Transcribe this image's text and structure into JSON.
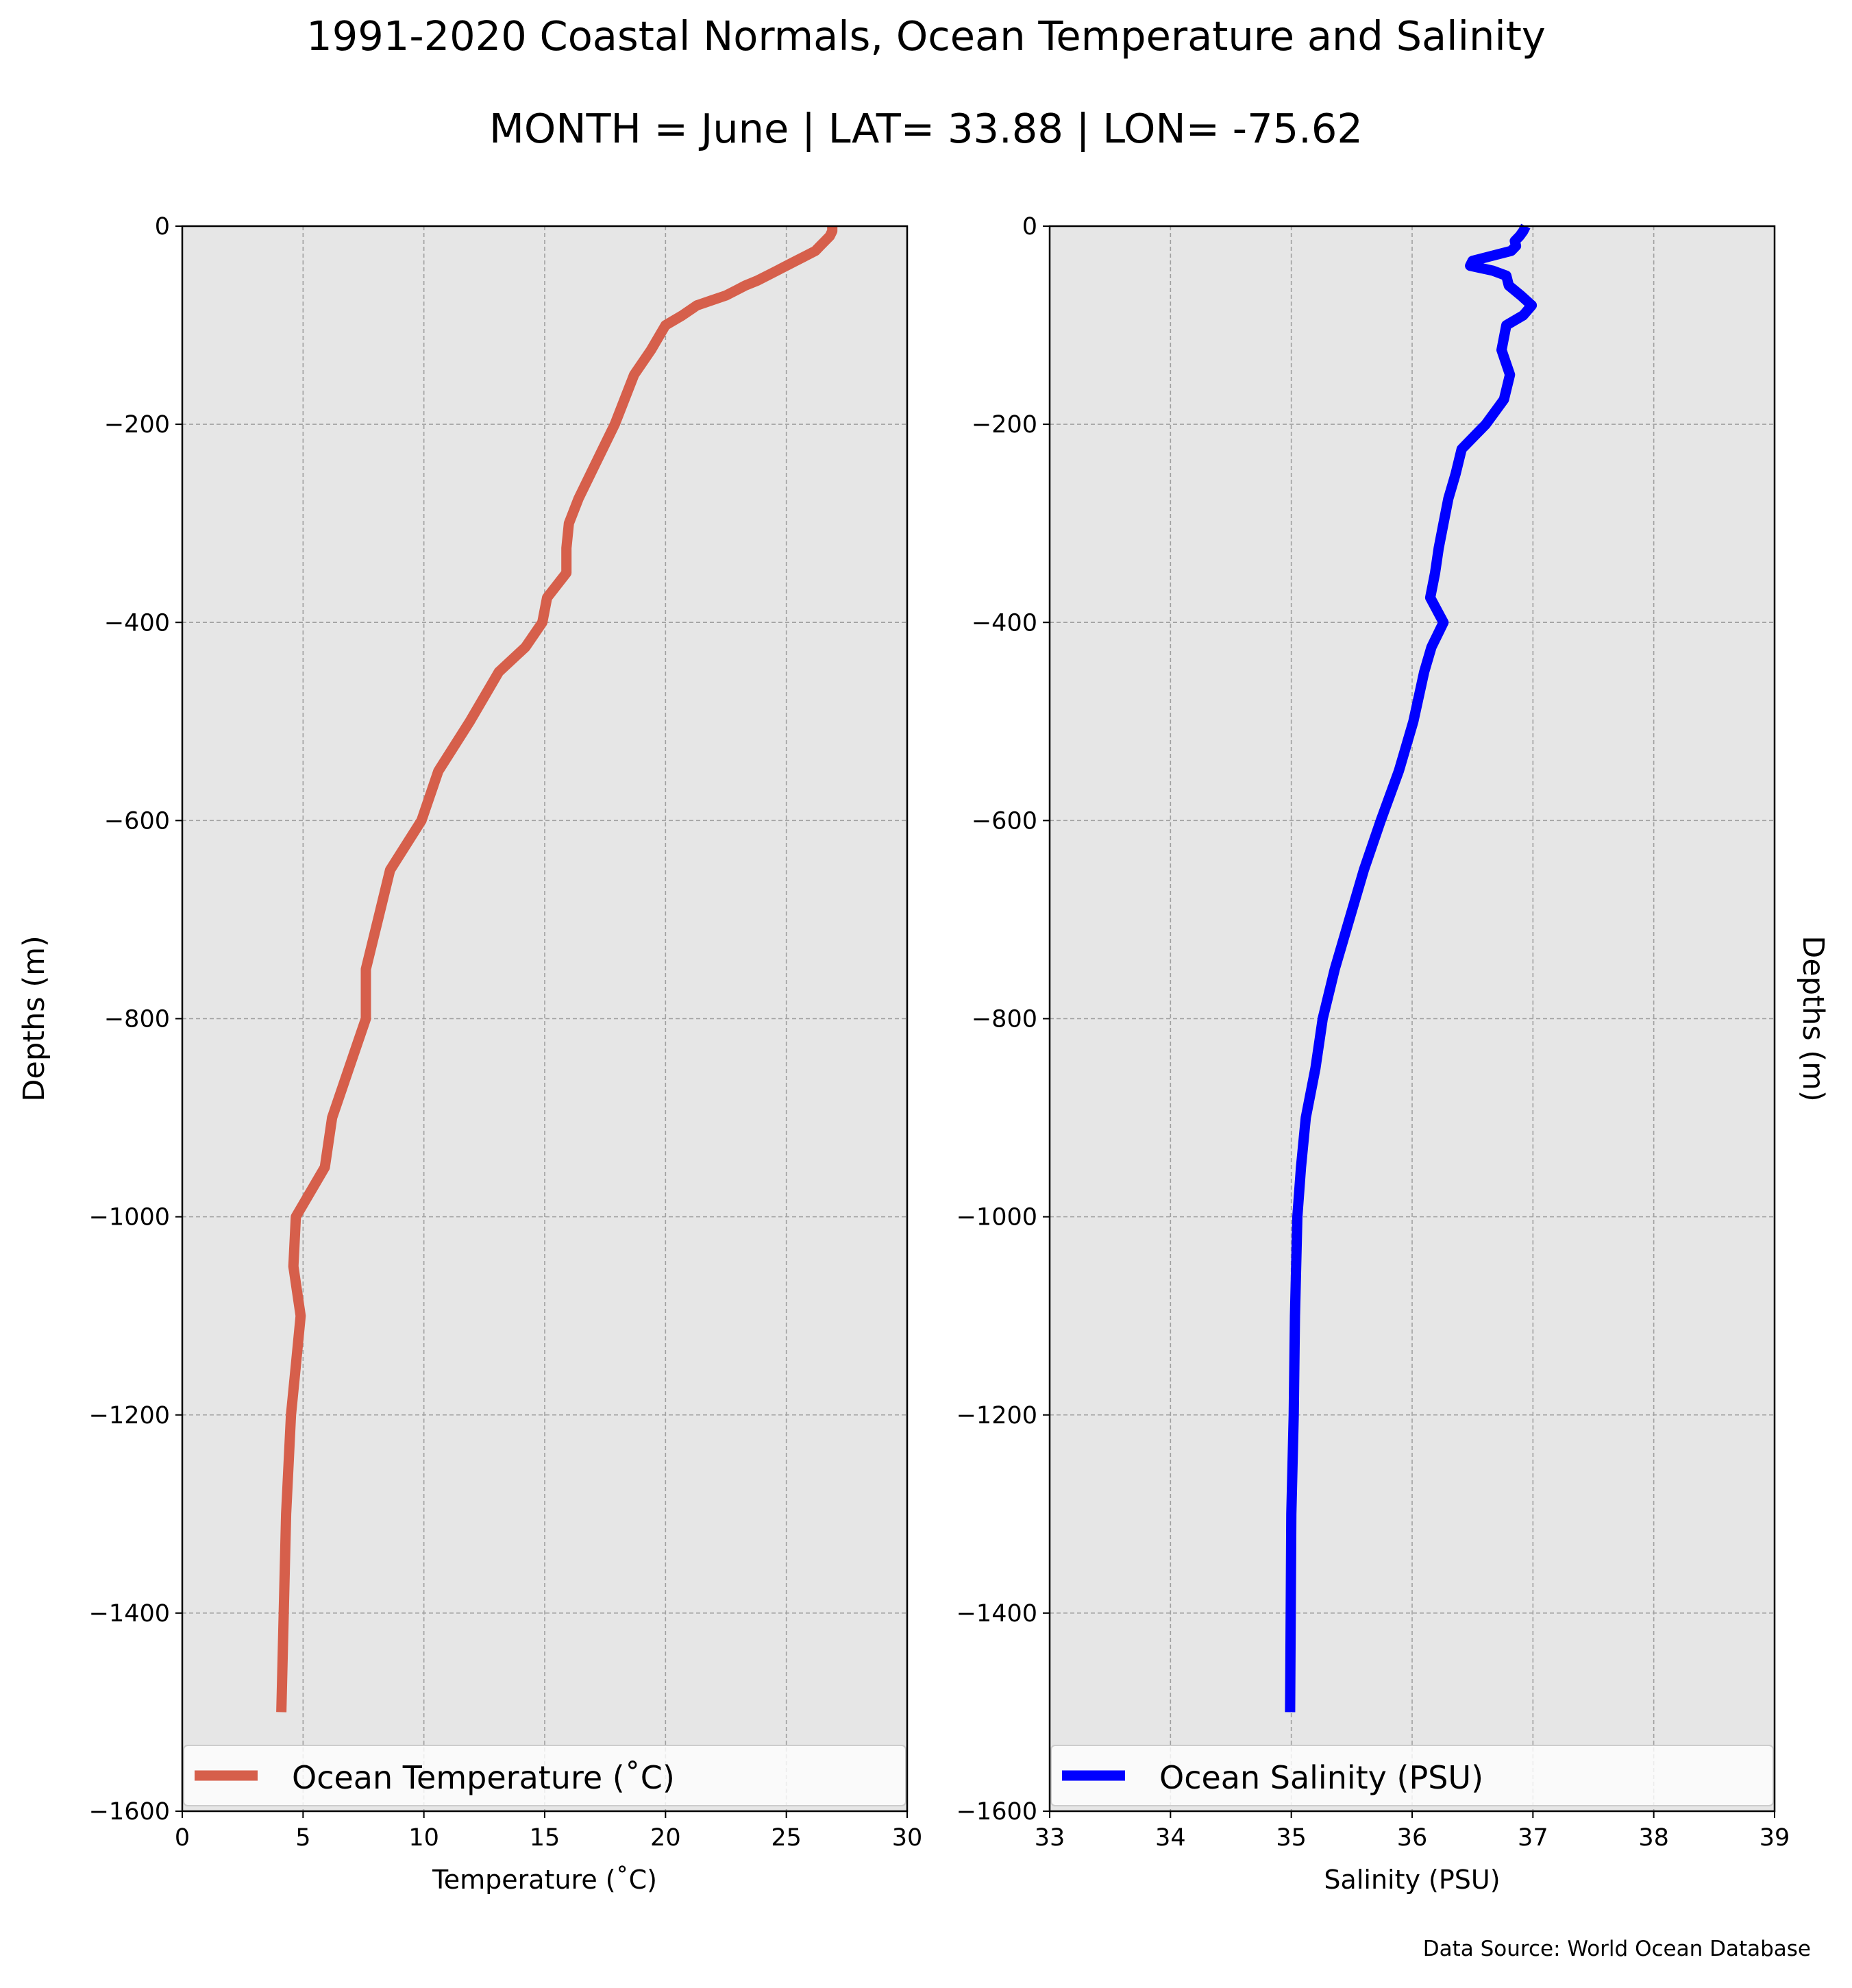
{
  "figure": {
    "title": "1991-2020 Coastal Normals, Ocean Temperature and Salinity",
    "subtitle": "MONTH = June | LAT= 33.88 | LON= -75.62",
    "source": "Data Source: World Ocean Database"
  },
  "colors": {
    "temperature": "#d65f4b",
    "salinity": "#0000ff",
    "plot_background": "#e6e6e6",
    "grid": "#a0a0a0"
  },
  "chart_data": [
    {
      "type": "line",
      "series": [
        {
          "name": "Ocean Temperature ($^\\circ$C)",
          "x": [
            26.9,
            26.9,
            26.8,
            26.6,
            26.4,
            26.2,
            25.8,
            25.4,
            25.0,
            24.6,
            24.2,
            23.8,
            23.3,
            22.9,
            22.5,
            21.9,
            21.3,
            20.7,
            20.0,
            19.4,
            18.7,
            18.3,
            17.9,
            17.4,
            16.9,
            16.4,
            16.0,
            15.9,
            15.9,
            15.1,
            14.9,
            14.2,
            13.1,
            11.9,
            10.6,
            9.9,
            8.6,
            8.1,
            7.6,
            7.6,
            6.9,
            6.2,
            5.9,
            4.7,
            4.6,
            4.9,
            4.7,
            4.5,
            4.3,
            4.2,
            4.1
          ],
          "y": [
            0,
            -5,
            -10,
            -15,
            -20,
            -25,
            -30,
            -35,
            -40,
            -45,
            -50,
            -55,
            -60,
            -65,
            -70,
            -75,
            -80,
            -90,
            -100,
            -125,
            -150,
            -175,
            -200,
            -225,
            -250,
            -275,
            -300,
            -325,
            -350,
            -375,
            -400,
            -425,
            -450,
            -500,
            -550,
            -600,
            -650,
            -700,
            -750,
            -800,
            -850,
            -900,
            -950,
            -1000,
            -1050,
            -1100,
            -1150,
            -1200,
            -1300,
            -1400,
            -1500
          ]
        }
      ],
      "xlabel": "Temperature ($^\\circ$C)",
      "ylabel": "Depths (m)",
      "xlim": [
        0,
        30
      ],
      "ylim": [
        -1600,
        0
      ],
      "xticks": [
        0,
        5,
        10,
        15,
        20,
        25,
        30
      ],
      "yticks": [
        0,
        -200,
        -400,
        -600,
        -800,
        -1000,
        -1200,
        -1400,
        -1600
      ],
      "grid": true,
      "legend": "lower center"
    },
    {
      "type": "line",
      "series": [
        {
          "name": "Ocean Salinity (PSU)",
          "x": [
            36.94,
            36.92,
            36.89,
            36.85,
            36.86,
            36.82,
            36.5,
            36.48,
            36.67,
            36.78,
            36.8,
            36.9,
            36.99,
            36.92,
            36.78,
            36.74,
            36.81,
            36.76,
            36.61,
            36.41,
            36.36,
            36.3,
            36.26,
            36.22,
            36.19,
            36.15,
            36.26,
            36.16,
            36.1,
            36.01,
            35.89,
            35.74,
            35.6,
            35.48,
            35.36,
            35.26,
            35.2,
            35.12,
            35.08,
            35.05,
            35.03,
            35.02,
            35.0,
            34.99
          ],
          "y": [
            0,
            -5,
            -10,
            -15,
            -20,
            -25,
            -35,
            -40,
            -45,
            -50,
            -60,
            -70,
            -80,
            -90,
            -100,
            -125,
            -150,
            -175,
            -200,
            -225,
            -250,
            -275,
            -300,
            -325,
            -350,
            -375,
            -400,
            -425,
            -450,
            -500,
            -550,
            -600,
            -650,
            -700,
            -750,
            -800,
            -850,
            -900,
            -950,
            -1000,
            -1100,
            -1200,
            -1300,
            -1500
          ]
        }
      ],
      "xlabel": "Salinity (PSU)",
      "ylabel": "Depths (m)",
      "xlim": [
        33,
        39
      ],
      "ylim": [
        -1600,
        0
      ],
      "xticks": [
        33,
        34,
        35,
        36,
        37,
        38,
        39
      ],
      "yticks": [
        0,
        -200,
        -400,
        -600,
        -800,
        -1000,
        -1200,
        -1400,
        -1600
      ],
      "grid": true,
      "legend": "lower center"
    }
  ]
}
